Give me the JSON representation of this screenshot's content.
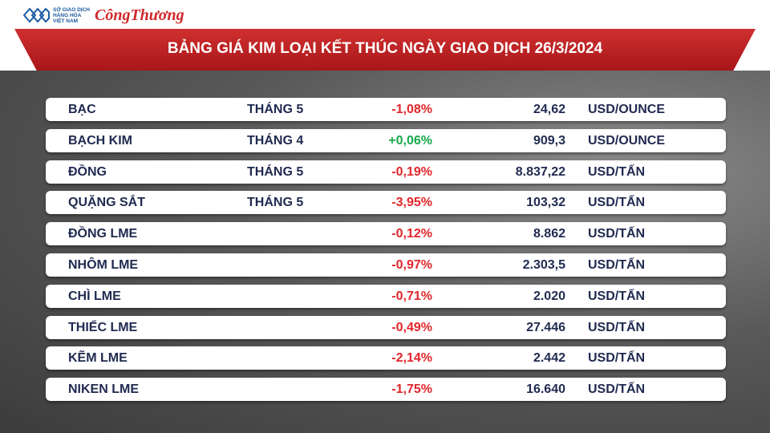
{
  "header": {
    "logo_lines": [
      "SỞ GIAO DỊCH",
      "HÀNG HÓA",
      "VIỆT NAM"
    ],
    "brand": "CôngThương",
    "title": "BẢNG GIÁ KIM LOẠI KẾT THÚC NGÀY GIAO DỊCH 26/3/2024"
  },
  "table": {
    "rows": [
      {
        "name": "BẠC",
        "month": "THÁNG 5",
        "change": "-1,08%",
        "price": "24,62",
        "unit": "USD/OUNCE"
      },
      {
        "name": "BẠCH KIM",
        "month": "THÁNG 4",
        "change": "+0,06%",
        "price": "909,3",
        "unit": "USD/OUNCE"
      },
      {
        "name": "ĐỒNG",
        "month": "THÁNG 5",
        "change": "-0,19%",
        "price": "8.837,22",
        "unit": "USD/TẤN"
      },
      {
        "name": "QUẶNG SẮT",
        "month": "THÁNG 5",
        "change": "-3,95%",
        "price": "103,32",
        "unit": "USD/TẤN"
      },
      {
        "name": "ĐỒNG LME",
        "change": "-0,12%",
        "price": "8.862",
        "unit": "USD/TẤN"
      },
      {
        "name": "NHÔM LME",
        "change": "-0,97%",
        "price": "2.303,5",
        "unit": "USD/TẤN"
      },
      {
        "name": "CHÌ LME",
        "change": "-0,71%",
        "price": "2.020",
        "unit": "USD/TẤN"
      },
      {
        "name": "THIẾC LME",
        "change": "-0,49%",
        "price": "27.446",
        "unit": "USD/TẤN"
      },
      {
        "name": "KẼM LME",
        "change": "-2,14%",
        "price": "2.442",
        "unit": "USD/TẤN"
      },
      {
        "name": "NIKEN LME",
        "change": "-1,75%",
        "price": "16.640",
        "unit": "USD/TẤN"
      }
    ]
  }
}
